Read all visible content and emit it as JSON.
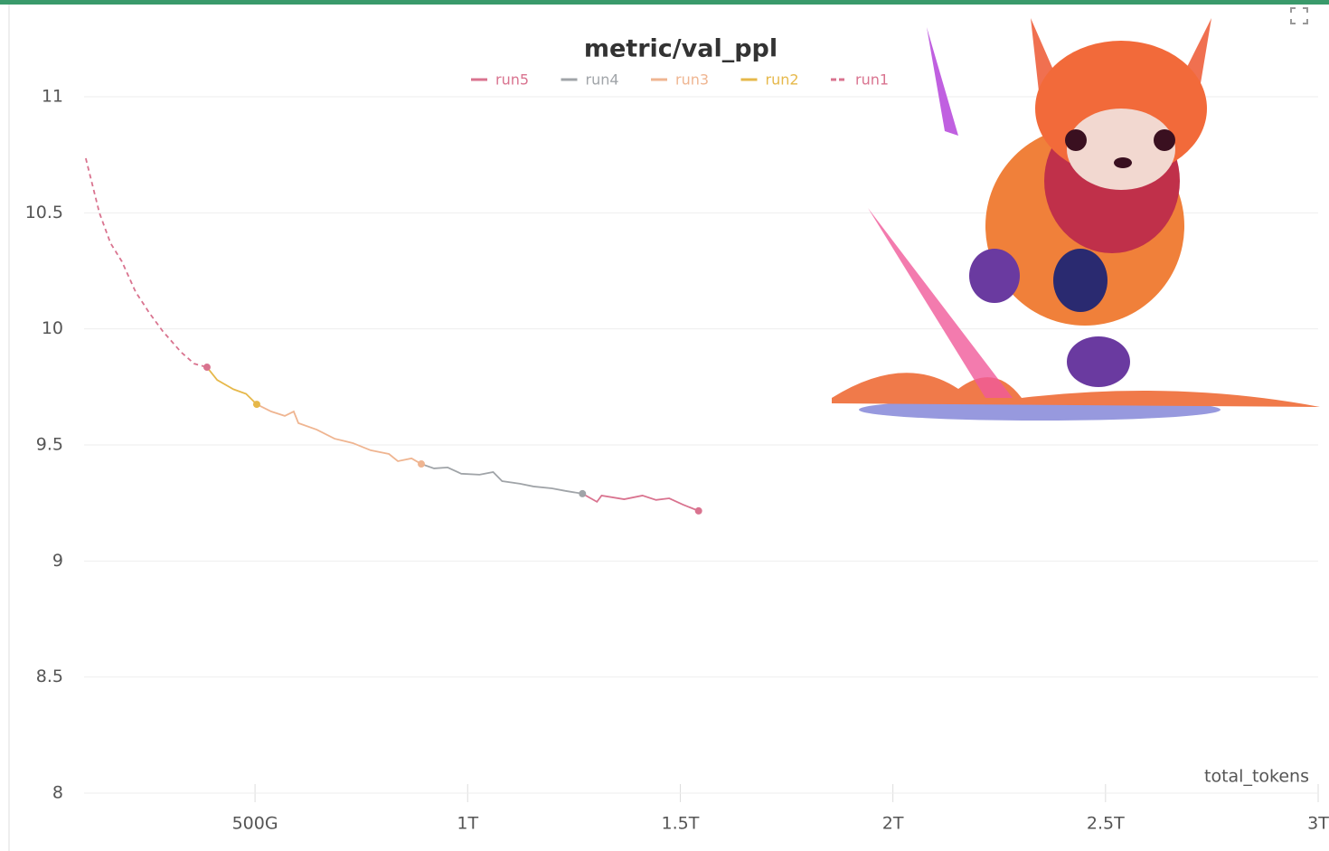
{
  "chart_data": {
    "type": "line",
    "title": "metric/val_ppl",
    "x_label": "total_tokens",
    "xlim": [
      98,
      3000
    ],
    "ylim": [
      8,
      11.3
    ],
    "xticks": [
      {
        "value": 500,
        "label": "500G"
      },
      {
        "value": 1000,
        "label": "1T"
      },
      {
        "value": 1500,
        "label": "1.5T"
      },
      {
        "value": 2000,
        "label": "2T"
      },
      {
        "value": 2500,
        "label": "2.5T"
      },
      {
        "value": 3000,
        "label": "3T"
      }
    ],
    "yticks": [
      8,
      8.5,
      9,
      9.5,
      10,
      10.5,
      11
    ],
    "grid": true,
    "series": [
      {
        "name": "run5",
        "color": "#d9738f",
        "dash": false,
        "x": [
          1270,
          1304,
          1315,
          1368,
          1411,
          1443,
          1474,
          1506,
          1543
        ],
        "values": [
          9.29,
          9.255,
          9.282,
          9.266,
          9.282,
          9.263,
          9.27,
          9.243,
          9.216
        ]
      },
      {
        "name": "run4",
        "color": "#a0a4a8",
        "dash": false,
        "x": [
          891,
          921,
          953,
          985,
          1028,
          1060,
          1081,
          1123,
          1155,
          1198,
          1230,
          1270
        ],
        "values": [
          9.418,
          9.399,
          9.403,
          9.376,
          9.372,
          9.383,
          9.344,
          9.333,
          9.321,
          9.313,
          9.302,
          9.29
        ]
      },
      {
        "name": "run3",
        "color": "#efb591",
        "dash": false,
        "x": [
          504,
          538,
          570,
          591,
          602,
          645,
          687,
          730,
          772,
          815,
          836,
          868,
          891
        ],
        "values": [
          9.675,
          9.644,
          9.625,
          9.644,
          9.594,
          9.566,
          9.527,
          9.508,
          9.477,
          9.461,
          9.43,
          9.442,
          9.418
        ]
      },
      {
        "name": "run2",
        "color": "#e6b84a",
        "dash": false,
        "x": [
          387,
          411,
          449,
          479,
          504
        ],
        "values": [
          9.835,
          9.78,
          9.74,
          9.72,
          9.675
        ]
      },
      {
        "name": "run1",
        "color": "#d9738f",
        "dash": true,
        "x": [
          102,
          134,
          160,
          187,
          219,
          251,
          283,
          326,
          357,
          387
        ],
        "values": [
          10.735,
          10.5,
          10.37,
          10.29,
          10.16,
          10.07,
          9.99,
          9.9,
          9.85,
          9.835
        ]
      }
    ]
  }
}
